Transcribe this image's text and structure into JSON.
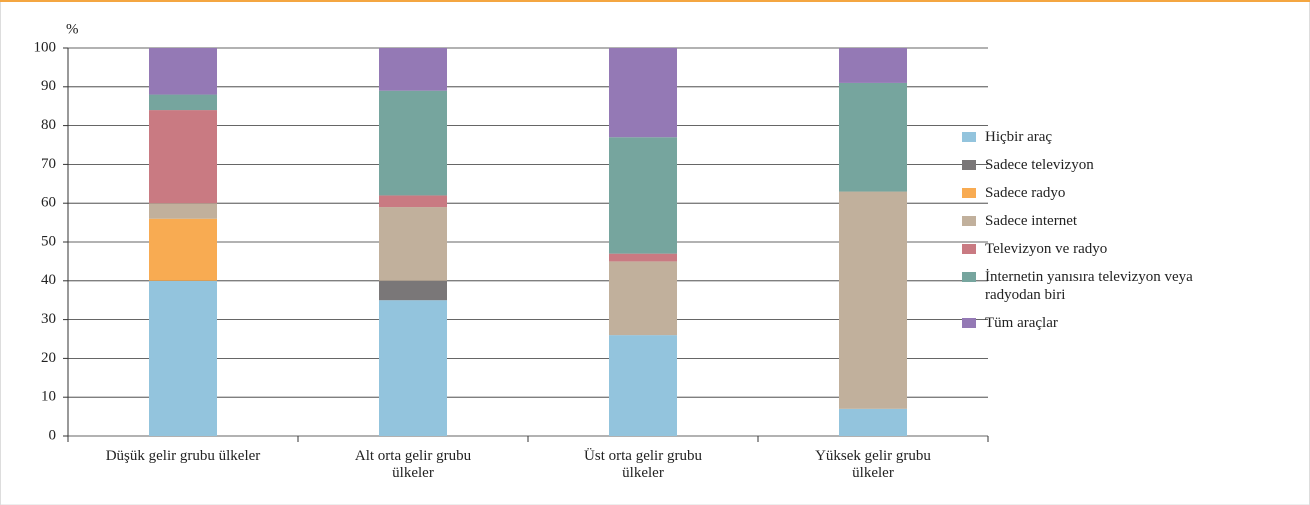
{
  "chart_data": {
    "type": "stacked_bar",
    "y_label": "%",
    "categories": [
      "Düşük gelir grubu ülkeler",
      "Alt orta gelir grubu ülkeler",
      "Üst orta gelir grubu ülkeler",
      "Yüksek gelir grubu ülkeler"
    ],
    "series": [
      {
        "name": "Hiçbir araç",
        "color": "#93c4dd",
        "values": [
          40,
          35,
          26,
          7
        ]
      },
      {
        "name": "Sadece televizyon",
        "color": "#7a7778",
        "values": [
          0,
          5,
          0,
          0
        ]
      },
      {
        "name": "Sadece radyo",
        "color": "#f8ab52",
        "values": [
          16,
          0,
          0,
          0
        ]
      },
      {
        "name": "Sadece internet",
        "color": "#c1b09c",
        "values": [
          4,
          19,
          19,
          56
        ]
      },
      {
        "name": "Televizyon ve radyo",
        "color": "#c97a82",
        "values": [
          24,
          3,
          2,
          0
        ]
      },
      {
        "name": "İnternetin yanısıra televizyon veya radyodan biri",
        "color": "#76a59e",
        "values": [
          4,
          27,
          30,
          28
        ]
      },
      {
        "name": "Tüm araçlar",
        "color": "#9479b5",
        "values": [
          12,
          11,
          23,
          9
        ]
      }
    ],
    "ylim": [
      0,
      100
    ],
    "yticks": [
      0,
      10,
      20,
      30,
      40,
      50,
      60,
      70,
      80,
      90,
      100
    ],
    "grid": true,
    "legend": "right"
  }
}
